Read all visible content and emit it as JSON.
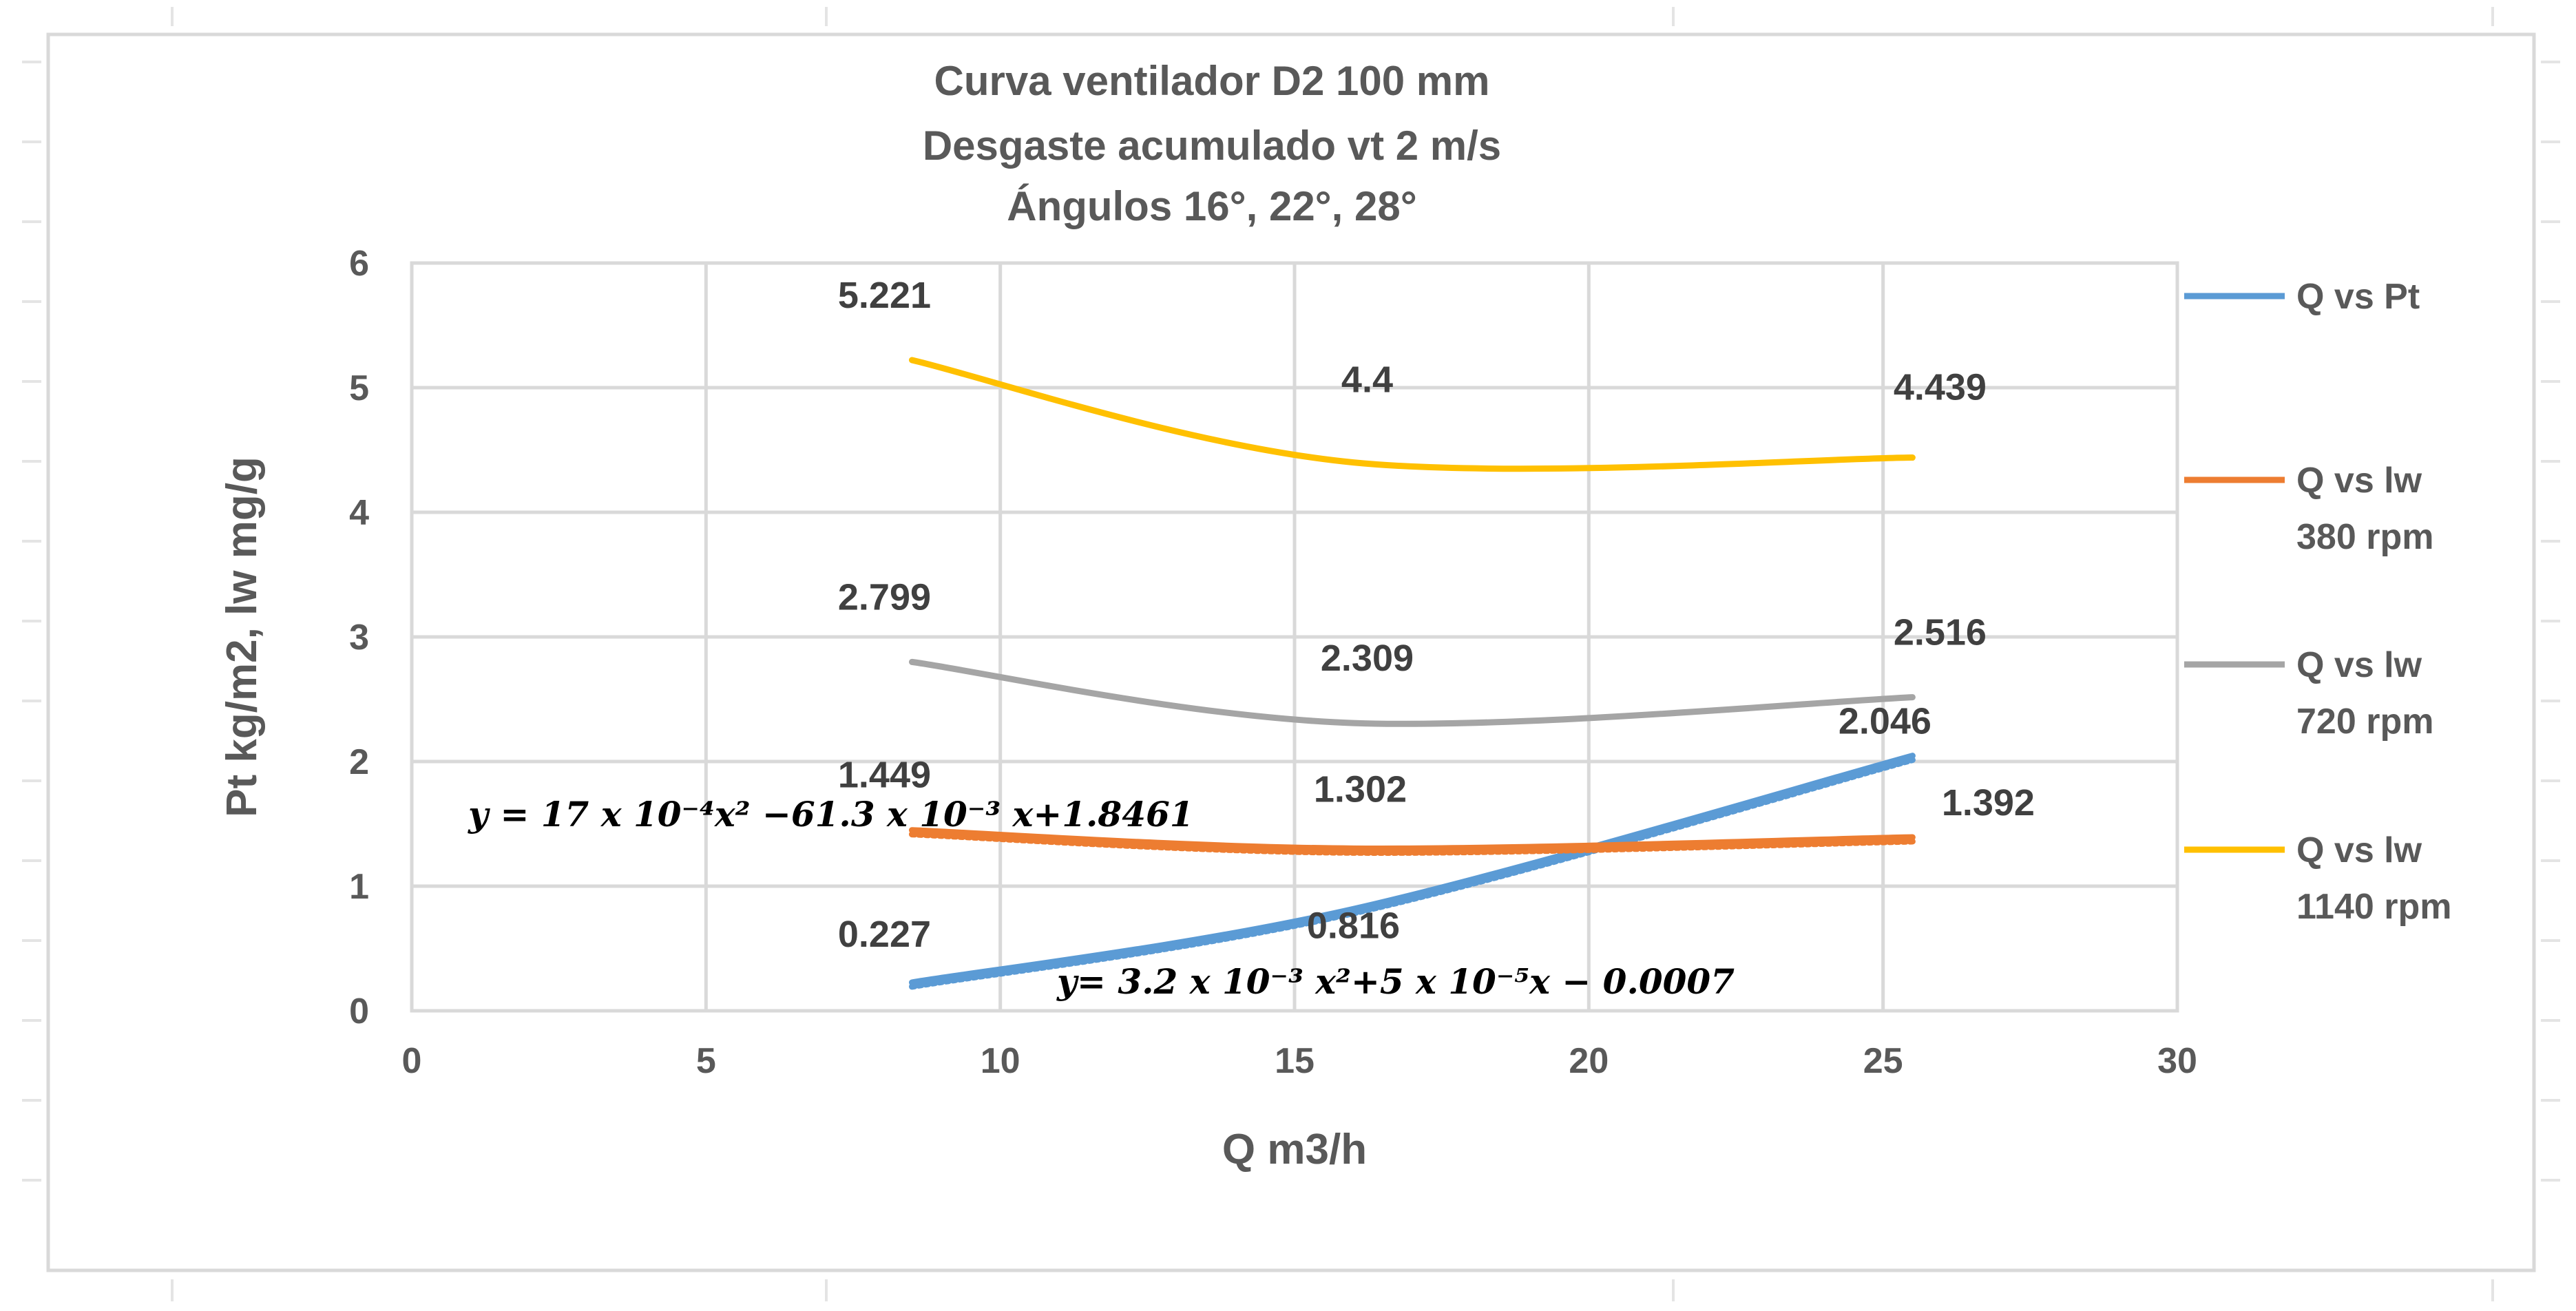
{
  "chart_data": {
    "type": "line",
    "title": [
      "Curva ventilador D2 100 mm",
      "Desgaste acumulado vt 2 m/s",
      "Ángulos  16°, 22°, 28°"
    ],
    "xlabel": "Q m3/h",
    "ylabel": "Pt kg/m2, lw mg/g",
    "xlim": [
      0,
      30
    ],
    "ylim": [
      0,
      6
    ],
    "x_ticks": [
      0,
      5,
      10,
      15,
      20,
      25,
      30
    ],
    "y_ticks": [
      0,
      1,
      2,
      3,
      4,
      5,
      6
    ],
    "grid": true,
    "legend_position": "right",
    "series": [
      {
        "name": "Q vs Pt",
        "legend_lines": [
          "Q vs Pt"
        ],
        "color": "#5B9BD5",
        "x": [
          8.5,
          16,
          25.5
        ],
        "y": [
          0.227,
          0.816,
          2.046
        ],
        "labels": [
          "0.227",
          "0.816",
          "2.046"
        ]
      },
      {
        "name": "Q vs lw 380 rpm",
        "legend_lines": [
          "Q vs lw",
          "380 rpm"
        ],
        "color": "#ED7D31",
        "x": [
          8.5,
          16,
          25.5
        ],
        "y": [
          1.449,
          1.302,
          1.392
        ],
        "labels": [
          "1.449",
          "1.302",
          "1.392"
        ]
      },
      {
        "name": "Q vs lw 720 rpm",
        "legend_lines": [
          "Q vs lw",
          "720 rpm"
        ],
        "color": "#A5A5A5",
        "x": [
          8.5,
          16,
          25.5
        ],
        "y": [
          2.799,
          2.309,
          2.516
        ],
        "labels": [
          "2.799",
          "2.309",
          "2.516"
        ]
      },
      {
        "name": "Q vs lw 1140 rpm",
        "legend_lines": [
          "Q vs lw",
          "1140 rpm"
        ],
        "color": "#FFC000",
        "x": [
          8.5,
          16,
          25.5
        ],
        "y": [
          5.221,
          4.4,
          4.439
        ],
        "labels": [
          "5.221",
          "4.4",
          "4.439"
        ]
      }
    ],
    "annotations": [
      "y = 17 x 10⁻⁴x² −61.3 x 10⁻³ x+1.8461",
      "y= 3.2 x 10⁻³  x²+5 x 10⁻⁵x − 0.0007"
    ]
  }
}
